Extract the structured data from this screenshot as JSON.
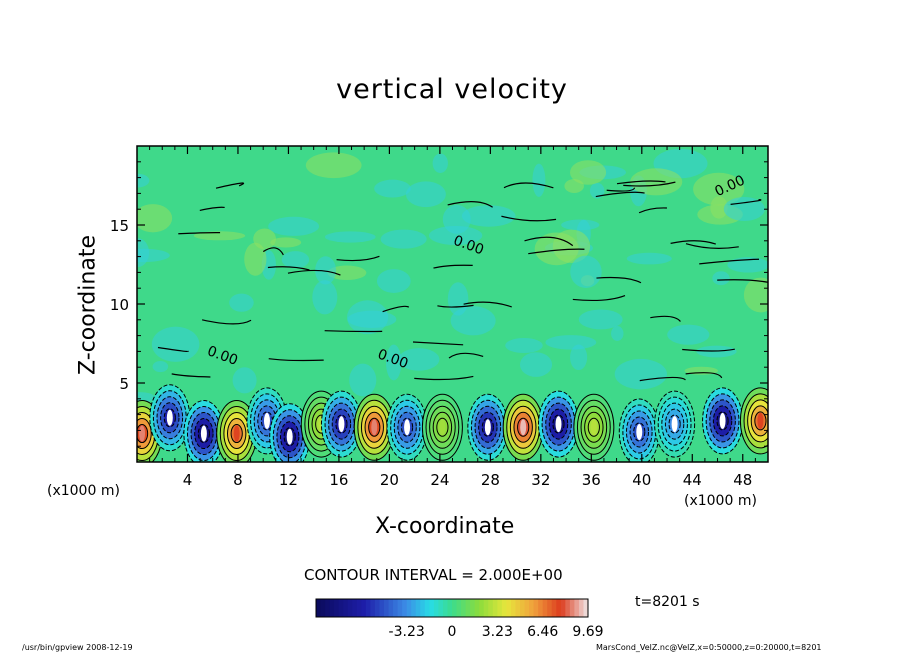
{
  "chart_data": {
    "type": "heatmap",
    "title": "vertical velocity",
    "xlabel": "X-coordinate",
    "ylabel": "Z-coordinate",
    "x_unit": "(x1000 m)",
    "xlim": [
      0,
      50
    ],
    "ylim": [
      0,
      20
    ],
    "x_ticks": [
      "4",
      "8",
      "12",
      "16",
      "20",
      "24",
      "28",
      "32",
      "36",
      "40",
      "44",
      "48"
    ],
    "x_tick_values": [
      4,
      8,
      12,
      16,
      20,
      24,
      28,
      32,
      36,
      40,
      44,
      48
    ],
    "y_ticks": [
      "5",
      "10",
      "15"
    ],
    "y_tick_values": [
      5,
      10,
      15
    ],
    "contour_interval_text": "CONTOUR INTERVAL = 2.000E+00",
    "contour_labels": [
      "0.00",
      "0.00",
      "0.00",
      "0.00"
    ],
    "contour_label_positions": [
      [
        25,
        13.8
      ],
      [
        46,
        16.8
      ],
      [
        5.5,
        6.8
      ],
      [
        19,
        6.6
      ]
    ],
    "cells": [
      {
        "x": 0.4,
        "z": 1.8,
        "w": 9.0
      },
      {
        "x": 2.6,
        "z": 2.8,
        "w": -7.5
      },
      {
        "x": 5.3,
        "z": 1.8,
        "w": -9.69
      },
      {
        "x": 7.9,
        "z": 1.8,
        "w": 8.0
      },
      {
        "x": 10.3,
        "z": 2.6,
        "w": -6.0
      },
      {
        "x": 12.1,
        "z": 1.6,
        "w": -9.69
      },
      {
        "x": 14.6,
        "z": 2.4,
        "w": 3.0
      },
      {
        "x": 16.2,
        "z": 2.4,
        "w": -8.0
      },
      {
        "x": 18.8,
        "z": 2.2,
        "w": 9.0
      },
      {
        "x": 21.4,
        "z": 2.2,
        "w": -6.0
      },
      {
        "x": 24.2,
        "z": 2.2,
        "w": 2.5
      },
      {
        "x": 27.8,
        "z": 2.2,
        "w": -8.5
      },
      {
        "x": 30.6,
        "z": 2.2,
        "w": 9.69
      },
      {
        "x": 33.4,
        "z": 2.4,
        "w": -9.69
      },
      {
        "x": 36.2,
        "z": 2.2,
        "w": 3.0
      },
      {
        "x": 39.8,
        "z": 1.9,
        "w": -6.0
      },
      {
        "x": 42.6,
        "z": 2.4,
        "w": -4.0
      },
      {
        "x": 46.4,
        "z": 2.6,
        "w": -9.69
      },
      {
        "x": 49.4,
        "z": 2.6,
        "w": 8.0
      }
    ],
    "colorbar": {
      "ticks": [
        "-3.23",
        "0",
        "3.23",
        "6.46",
        "9.69"
      ],
      "tick_values": [
        -3.23,
        0,
        3.23,
        6.46,
        9.69
      ],
      "range": [
        -9.69,
        9.69
      ]
    },
    "time_text": "t=8201 s"
  },
  "footer": {
    "left": "/usr/bin/gpview   2008-12-19",
    "right": "MarsCond_VelZ.nc@VelZ,x=0:50000,z=0:20000,t=8201"
  },
  "colors": {
    "negative": "#1a1a9a",
    "positive": "#d83018",
    "background_field": "#3fd98a"
  }
}
